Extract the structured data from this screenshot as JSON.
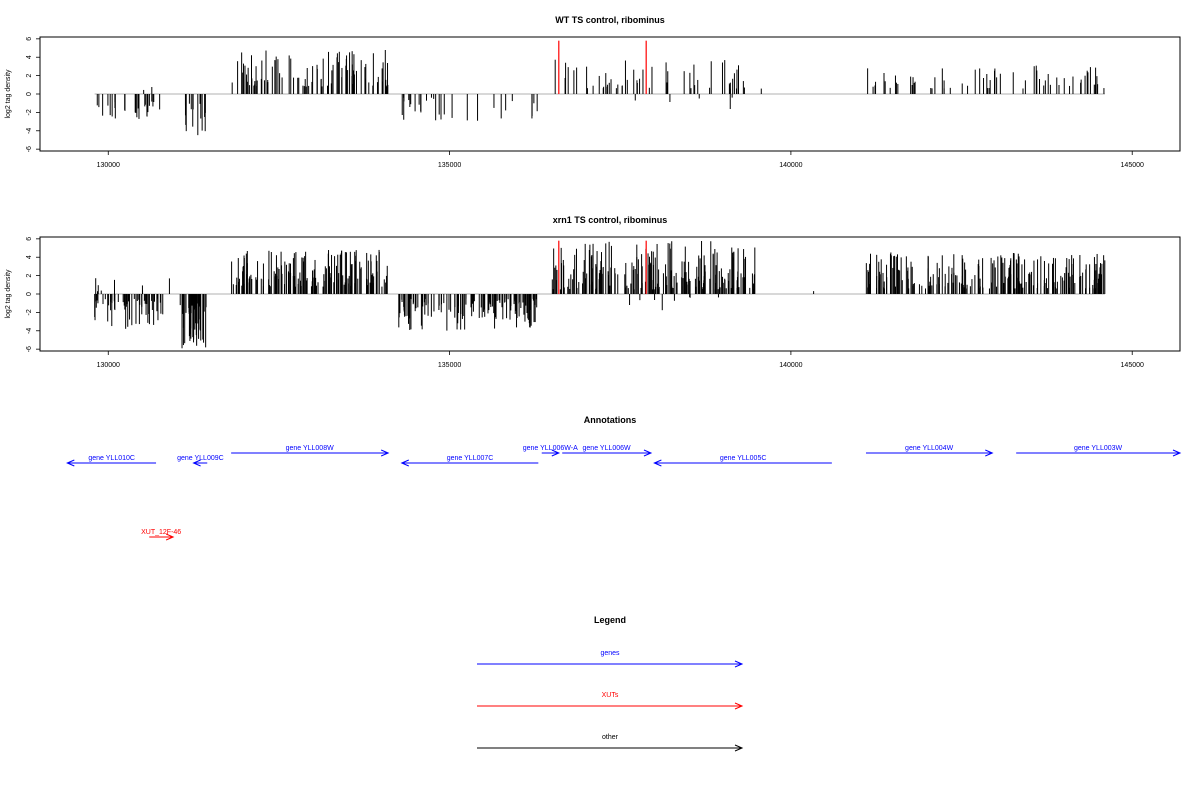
{
  "colors": {
    "genes": "#0000ff",
    "xuts": "#ff0000",
    "other": "#000000",
    "bars": "#000000",
    "highlight": "#ff0000"
  },
  "chart_data": [
    {
      "type": "bar",
      "title": "WT TS control, ribominus",
      "ylabel": "log2 tag density",
      "xlim": [
        129000,
        145700
      ],
      "ylim": [
        -6.2,
        6.2
      ],
      "x_ticks": [
        "130000",
        "135000",
        "140000",
        "145000"
      ],
      "y_ticks": [
        "6",
        "4",
        "2",
        "0",
        "-2",
        "-4",
        "-6"
      ],
      "grid": false,
      "segments": [
        {
          "range": [
            129800,
            130800
          ],
          "sign": -1,
          "min": 0.8,
          "max": 3.0,
          "n": 26,
          "seed": 11
        },
        {
          "range": [
            130500,
            130700
          ],
          "sign": 1,
          "min": 0.3,
          "max": 1.0,
          "n": 2,
          "seed": 12
        },
        {
          "range": [
            131100,
            131450
          ],
          "sign": -1,
          "min": 1.0,
          "max": 4.6,
          "n": 16,
          "seed": 13
        },
        {
          "range": [
            131800,
            134100
          ],
          "sign": 1,
          "min": 0.8,
          "max": 4.8,
          "n": 95,
          "seed": 14
        },
        {
          "range": [
            134300,
            136300
          ],
          "sign": -1,
          "min": 0.4,
          "max": 3.0,
          "n": 30,
          "seed": 15
        },
        {
          "range": [
            136400,
            139700
          ],
          "sign": 1,
          "min": 0.5,
          "max": 3.8,
          "n": 55,
          "seed": 16
        },
        {
          "range": [
            137600,
            139300
          ],
          "sign": -1,
          "min": 0.3,
          "max": 1.8,
          "n": 5,
          "seed": 17
        },
        {
          "range": [
            141100,
            144600
          ],
          "sign": 1,
          "min": 0.6,
          "max": 3.2,
          "n": 65,
          "seed": 18
        }
      ],
      "highlights": [
        {
          "x": 136600,
          "value": 5.8
        },
        {
          "x": 137880,
          "value": 5.8
        }
      ]
    },
    {
      "type": "bar",
      "title": "xrn1 TS control, ribominus",
      "ylabel": "log2 tag density",
      "xlim": [
        129000,
        145700
      ],
      "ylim": [
        -6.2,
        6.2
      ],
      "x_ticks": [
        "130000",
        "135000",
        "140000",
        "145000"
      ],
      "y_ticks": [
        "6",
        "4",
        "2",
        "0",
        "-2",
        "-4",
        "-6"
      ],
      "grid": false,
      "segments": [
        {
          "range": [
            129800,
            130800
          ],
          "sign": -1,
          "min": 0.5,
          "max": 3.8,
          "n": 55,
          "seed": 21
        },
        {
          "range": [
            129800,
            130900
          ],
          "sign": 1,
          "min": 0.3,
          "max": 2.2,
          "n": 8,
          "seed": 22
        },
        {
          "range": [
            131050,
            131450
          ],
          "sign": -1,
          "min": 1.0,
          "max": 6.0,
          "n": 45,
          "seed": 23
        },
        {
          "range": [
            131800,
            134100
          ],
          "sign": 1,
          "min": 0.8,
          "max": 4.8,
          "n": 160,
          "seed": 24
        },
        {
          "range": [
            134200,
            136300
          ],
          "sign": -1,
          "min": 0.5,
          "max": 4.0,
          "n": 130,
          "seed": 25
        },
        {
          "range": [
            136500,
            139500
          ],
          "sign": 1,
          "min": 0.5,
          "max": 5.8,
          "n": 200,
          "seed": 26
        },
        {
          "range": [
            137600,
            139000
          ],
          "sign": -1,
          "min": 0.3,
          "max": 2.4,
          "n": 8,
          "seed": 27
        },
        {
          "range": [
            140300,
            140400
          ],
          "sign": 1,
          "min": 0.3,
          "max": 0.6,
          "n": 1,
          "seed": 28
        },
        {
          "range": [
            141100,
            144600
          ],
          "sign": 1,
          "min": 0.6,
          "max": 4.6,
          "n": 220,
          "seed": 29
        }
      ],
      "highlights": [
        {
          "x": 136600,
          "value": 5.8
        },
        {
          "x": 137880,
          "value": 5.8
        }
      ]
    }
  ],
  "annotations": {
    "title": "Annotations",
    "features": [
      {
        "label": "gene YLL010C",
        "start": 130700,
        "end": 129400,
        "kind": "gene",
        "row": 2
      },
      {
        "label": "gene YLL009C",
        "start": 131450,
        "end": 131250,
        "kind": "gene",
        "row": 2
      },
      {
        "label": "gene YLL008W",
        "start": 131800,
        "end": 134100,
        "kind": "gene",
        "row": 1
      },
      {
        "label": "gene YLL007C",
        "start": 136300,
        "end": 134300,
        "kind": "gene",
        "row": 2
      },
      {
        "label": "gene YLL006W-A",
        "start": 136350,
        "end": 136600,
        "kind": "gene",
        "row": 1
      },
      {
        "label": "gene YLL006W",
        "start": 136650,
        "end": 137950,
        "kind": "gene",
        "row": 1
      },
      {
        "label": "gene YLL005C",
        "start": 140600,
        "end": 138000,
        "kind": "gene",
        "row": 2
      },
      {
        "label": "gene YLL004W",
        "start": 141100,
        "end": 142950,
        "kind": "gene",
        "row": 1
      },
      {
        "label": "gene YLL003W",
        "start": 143300,
        "end": 145700,
        "kind": "gene",
        "row": 1
      },
      {
        "label": "XUT_12F-46",
        "start": 130600,
        "end": 130950,
        "kind": "xut",
        "row": 3
      }
    ]
  },
  "legend": {
    "title": "Legend",
    "items": [
      {
        "label": "genes",
        "kind": "gene"
      },
      {
        "label": "XUTs",
        "kind": "xut"
      },
      {
        "label": "other",
        "kind": "other"
      }
    ]
  }
}
